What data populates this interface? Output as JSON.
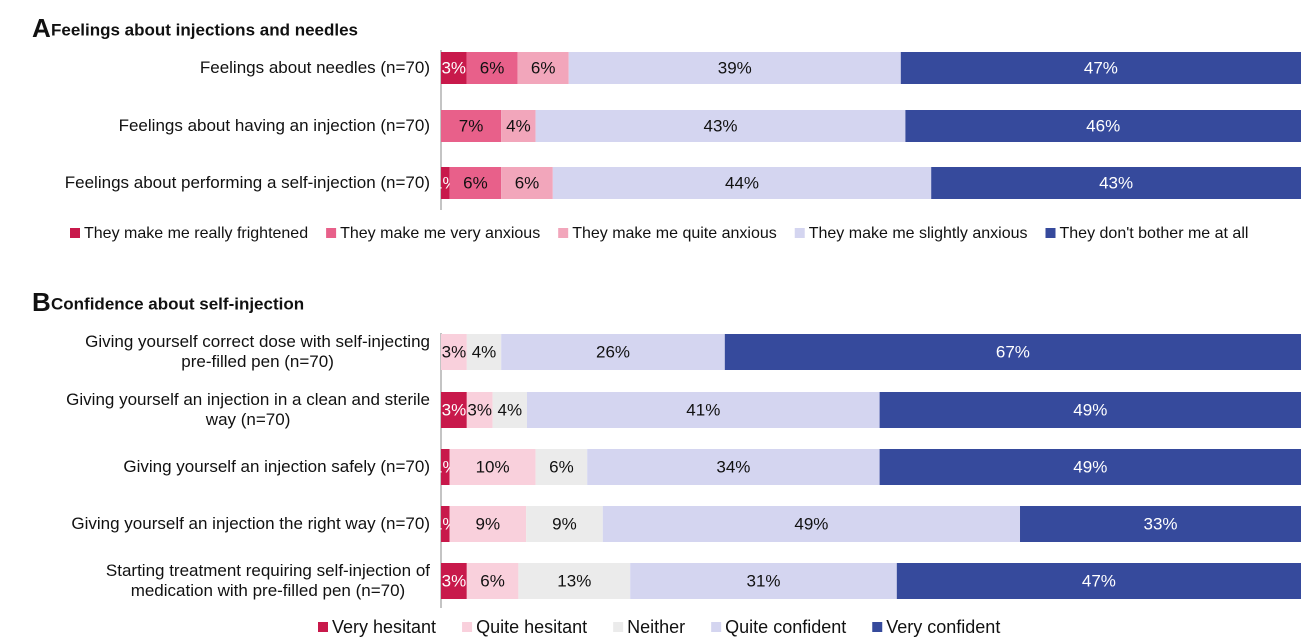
{
  "chart_data": [
    {
      "type": "bar",
      "orientation": "horizontal",
      "stacked": true,
      "label": "A",
      "title": "Feelings about injections and needles",
      "categories": [
        "Feelings about needles (n=70)",
        "Feelings about having an injection (n=70)",
        "Feelings about performing a self-injection (n=70)"
      ],
      "series": [
        {
          "name": "They make me really frightened",
          "color": "#c8194b",
          "values": [
            3,
            null,
            1
          ],
          "value_labels": [
            "3%",
            null,
            "1%"
          ]
        },
        {
          "name": "They make me very anxious",
          "color": "#e8608a",
          "values": [
            6,
            7,
            6
          ],
          "value_labels": [
            "6%",
            "7%",
            "6%"
          ]
        },
        {
          "name": "They make me quite anxious",
          "color": "#f2a6bb",
          "values": [
            6,
            4,
            6
          ],
          "value_labels": [
            "6%",
            "4%",
            "6%"
          ]
        },
        {
          "name": "They make me slightly anxious",
          "color": "#d4d5f0",
          "values": [
            39,
            43,
            44
          ],
          "value_labels": [
            "39%",
            "43%",
            "44%"
          ]
        },
        {
          "name": "They don't bother me at all",
          "color": "#364a9c",
          "values": [
            47,
            46,
            43
          ],
          "value_labels": [
            "47%",
            "46%",
            "43%"
          ]
        }
      ]
    },
    {
      "type": "bar",
      "orientation": "horizontal",
      "stacked": true,
      "label": "B",
      "title": "Confidence about self-injection",
      "categories": [
        "Giving yourself correct dose with self-injecting\npre-filled pen (n=70)",
        "Giving yourself an injection in a clean and sterile\nway (n=70)",
        "Giving yourself an injection safely (n=70)",
        "Giving yourself an injection the right way (n=70)",
        "Starting treatment requiring self-injection of\nmedication with pre-filled pen (n=70)"
      ],
      "series": [
        {
          "name": "Very hesitant",
          "color": "#c8194b",
          "values": [
            null,
            3,
            1,
            1,
            3
          ],
          "value_labels": [
            null,
            "3%",
            "1%",
            "1%",
            "3%"
          ]
        },
        {
          "name": "Quite hesitant",
          "color": "#f9d0dc",
          "values": [
            3,
            3,
            10,
            9,
            6
          ],
          "value_labels": [
            "3%",
            "3%",
            "10%",
            "9%",
            "6%"
          ]
        },
        {
          "name": "Neither",
          "color": "#ebebeb",
          "values": [
            4,
            4,
            6,
            9,
            13
          ],
          "value_labels": [
            "4%",
            "4%",
            "6%",
            "9%",
            "13%"
          ]
        },
        {
          "name": "Quite confident",
          "color": "#d4d5f0",
          "values": [
            26,
            41,
            34,
            49,
            31
          ],
          "value_labels": [
            "26%",
            "41%",
            "34%",
            "49%",
            "31%"
          ]
        },
        {
          "name": "Very confident",
          "color": "#364a9c",
          "values": [
            67,
            49,
            49,
            33,
            47
          ],
          "value_labels": [
            "67%",
            "49%",
            "49%",
            "33%",
            "47%"
          ]
        }
      ]
    }
  ]
}
